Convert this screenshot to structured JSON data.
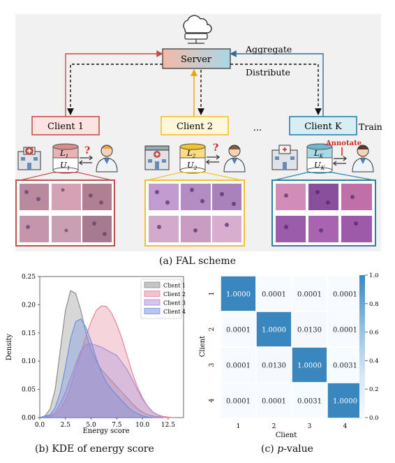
{
  "scheme": {
    "server_label": "Server",
    "aggregate_label": "Aggregate",
    "distribute_label": "Distribute",
    "ellipsis": "...",
    "train_label": "Train",
    "annotate_label": "Annotate",
    "question_mark": "?",
    "clients": [
      {
        "label": "Client 1",
        "labeled_set": "L",
        "labeled_sub": "1",
        "unlabeled_set": "U",
        "unlabeled_sub": "1",
        "color": "#c0504d"
      },
      {
        "label": "Client 2",
        "labeled_set": "L",
        "labeled_sub": "2",
        "unlabeled_set": "U",
        "unlabeled_sub": "2",
        "color": "#f2c12e"
      },
      {
        "label": "Client K",
        "labeled_set": "L",
        "labeled_sub": "K",
        "unlabeled_set": "U",
        "unlabeled_sub": "K",
        "color": "#2e7ea6"
      }
    ],
    "colors": {
      "aggregate_arrow": "#2e6f9e",
      "distribute_arrow": "#111111",
      "annotate": "#d62728"
    }
  },
  "captions": {
    "a": "(a) FAL scheme",
    "b": "(b) KDE of energy score",
    "c_prefix": "(c) ",
    "c_italic": "p",
    "c_suffix": "-value"
  },
  "chart_data": [
    {
      "type": "area",
      "xlabel": "Energy score",
      "ylabel": "Density",
      "xlim": [
        0,
        14
      ],
      "ylim": [
        0,
        0.25
      ],
      "xticks": [
        "0.0",
        "2.5",
        "5.0",
        "7.5",
        "10.0",
        "12.5"
      ],
      "yticks": [
        "0.00",
        "0.05",
        "0.10",
        "0.15",
        "0.20",
        "0.25"
      ],
      "legend": "top-right",
      "series": [
        {
          "name": "Client 1",
          "color": "#8c8c8c",
          "x": [
            0,
            0.5,
            1,
            1.5,
            2,
            2.5,
            3,
            3.5,
            4,
            4.5,
            5,
            5.5,
            6,
            6.5,
            7,
            7.5,
            8,
            8.5,
            9,
            9.5,
            10,
            10.5,
            11,
            12
          ],
          "y": [
            0,
            0.003,
            0.015,
            0.05,
            0.12,
            0.19,
            0.225,
            0.22,
            0.19,
            0.15,
            0.12,
            0.1,
            0.085,
            0.075,
            0.065,
            0.055,
            0.045,
            0.035,
            0.025,
            0.016,
            0.01,
            0.005,
            0.003,
            0
          ]
        },
        {
          "name": "Client 2",
          "color": "#e3849b",
          "x": [
            0,
            1,
            1.5,
            2,
            2.5,
            3,
            3.5,
            4,
            4.5,
            5,
            5.5,
            6,
            6.5,
            7,
            7.5,
            8,
            8.5,
            9,
            9.5,
            10,
            10.5,
            11,
            11.5,
            12,
            13
          ],
          "y": [
            0,
            0.002,
            0.006,
            0.015,
            0.03,
            0.055,
            0.085,
            0.115,
            0.145,
            0.17,
            0.19,
            0.198,
            0.197,
            0.185,
            0.165,
            0.14,
            0.11,
            0.08,
            0.055,
            0.035,
            0.02,
            0.01,
            0.005,
            0.002,
            0
          ]
        },
        {
          "name": "Client 3",
          "color": "#a78bd9",
          "x": [
            0,
            1,
            1.5,
            2,
            2.5,
            3,
            3.5,
            4,
            4.5,
            5,
            5.5,
            6,
            6.5,
            7,
            7.5,
            8,
            8.5,
            9,
            9.5,
            10,
            10.5,
            11,
            12
          ],
          "y": [
            0,
            0.003,
            0.01,
            0.025,
            0.045,
            0.07,
            0.095,
            0.118,
            0.13,
            0.131,
            0.128,
            0.125,
            0.12,
            0.115,
            0.11,
            0.098,
            0.085,
            0.068,
            0.05,
            0.033,
            0.02,
            0.01,
            0
          ]
        },
        {
          "name": "Client 4",
          "color": "#6f8fe0",
          "x": [
            0,
            1,
            1.5,
            2,
            2.5,
            3,
            3.5,
            4,
            4.5,
            5,
            5.5,
            6,
            6.5,
            7,
            7.5,
            8,
            8.5,
            9,
            9.5,
            10,
            10.5,
            11
          ],
          "y": [
            0,
            0.005,
            0.018,
            0.045,
            0.09,
            0.14,
            0.17,
            0.175,
            0.16,
            0.135,
            0.105,
            0.08,
            0.062,
            0.05,
            0.04,
            0.03,
            0.02,
            0.012,
            0.007,
            0.003,
            0.001,
            0
          ]
        }
      ]
    },
    {
      "type": "heatmap",
      "xlabel": "Client",
      "ylabel": "Client",
      "categories": [
        "1",
        "2",
        "3",
        "4"
      ],
      "values": [
        [
          "1.0000",
          "0.0001",
          "0.0001",
          "0.0001"
        ],
        [
          "0.0001",
          "1.0000",
          "0.0130",
          "0.0001"
        ],
        [
          "0.0001",
          "0.0130",
          "1.0000",
          "0.0031"
        ],
        [
          "0.0001",
          "0.0001",
          "0.0031",
          "1.0000"
        ]
      ],
      "colorbar": {
        "ticks": [
          "0.0",
          "0.2",
          "0.4",
          "0.6",
          "0.8",
          "1.0"
        ],
        "low": "#f7fbff",
        "high": "#3a87c0"
      }
    }
  ]
}
